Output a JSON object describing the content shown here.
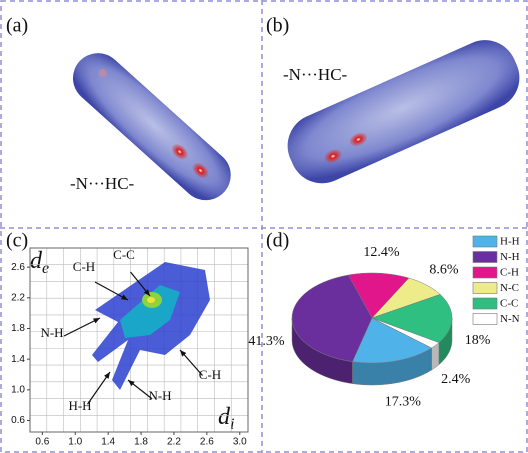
{
  "panels": {
    "a": {
      "label": "(a)",
      "annotation": "-N···HC-"
    },
    "b": {
      "label": "(b)",
      "annotation": "-N···HC-"
    },
    "c": {
      "label": "(c)",
      "y_axis": {
        "main": "d",
        "sub": "e"
      },
      "x_axis": {
        "main": "d",
        "sub": "i"
      },
      "xlim": [
        0.45,
        3.1
      ],
      "ylim": [
        0.45,
        2.85
      ],
      "xticks": [
        0.6,
        {
          "value": 1,
          "label": "1.0"
        },
        1.4,
        1.8,
        2.2,
        2.6,
        {
          "value": 3,
          "label": "3.0"
        }
      ],
      "yticks": [
        0.6,
        {
          "value": 1,
          "label": "1.0"
        },
        1.4,
        1.8,
        2.2,
        2.6
      ],
      "arrows": [
        "C-H",
        "C-C",
        "N-H",
        "H-H",
        "N-H",
        "C-H"
      ]
    },
    "d": {
      "label": "(d)"
    }
  },
  "chart_data": {
    "type": "pie",
    "categories": [
      "H-H",
      "N-H",
      "C-H",
      "N-C",
      "C-C",
      "N-N"
    ],
    "values": [
      17.3,
      41.3,
      12.4,
      8.6,
      18,
      2.4
    ],
    "value_labels": [
      "17.3%",
      "41.3%",
      "12.4%",
      "8.6%",
      "18%",
      "2.4%"
    ],
    "colors": [
      "#4fb3ea",
      "#6a2f9c",
      "#e0168a",
      "#eeec8a",
      "#2fbf80",
      "#ffffff"
    ],
    "legend": "right"
  }
}
